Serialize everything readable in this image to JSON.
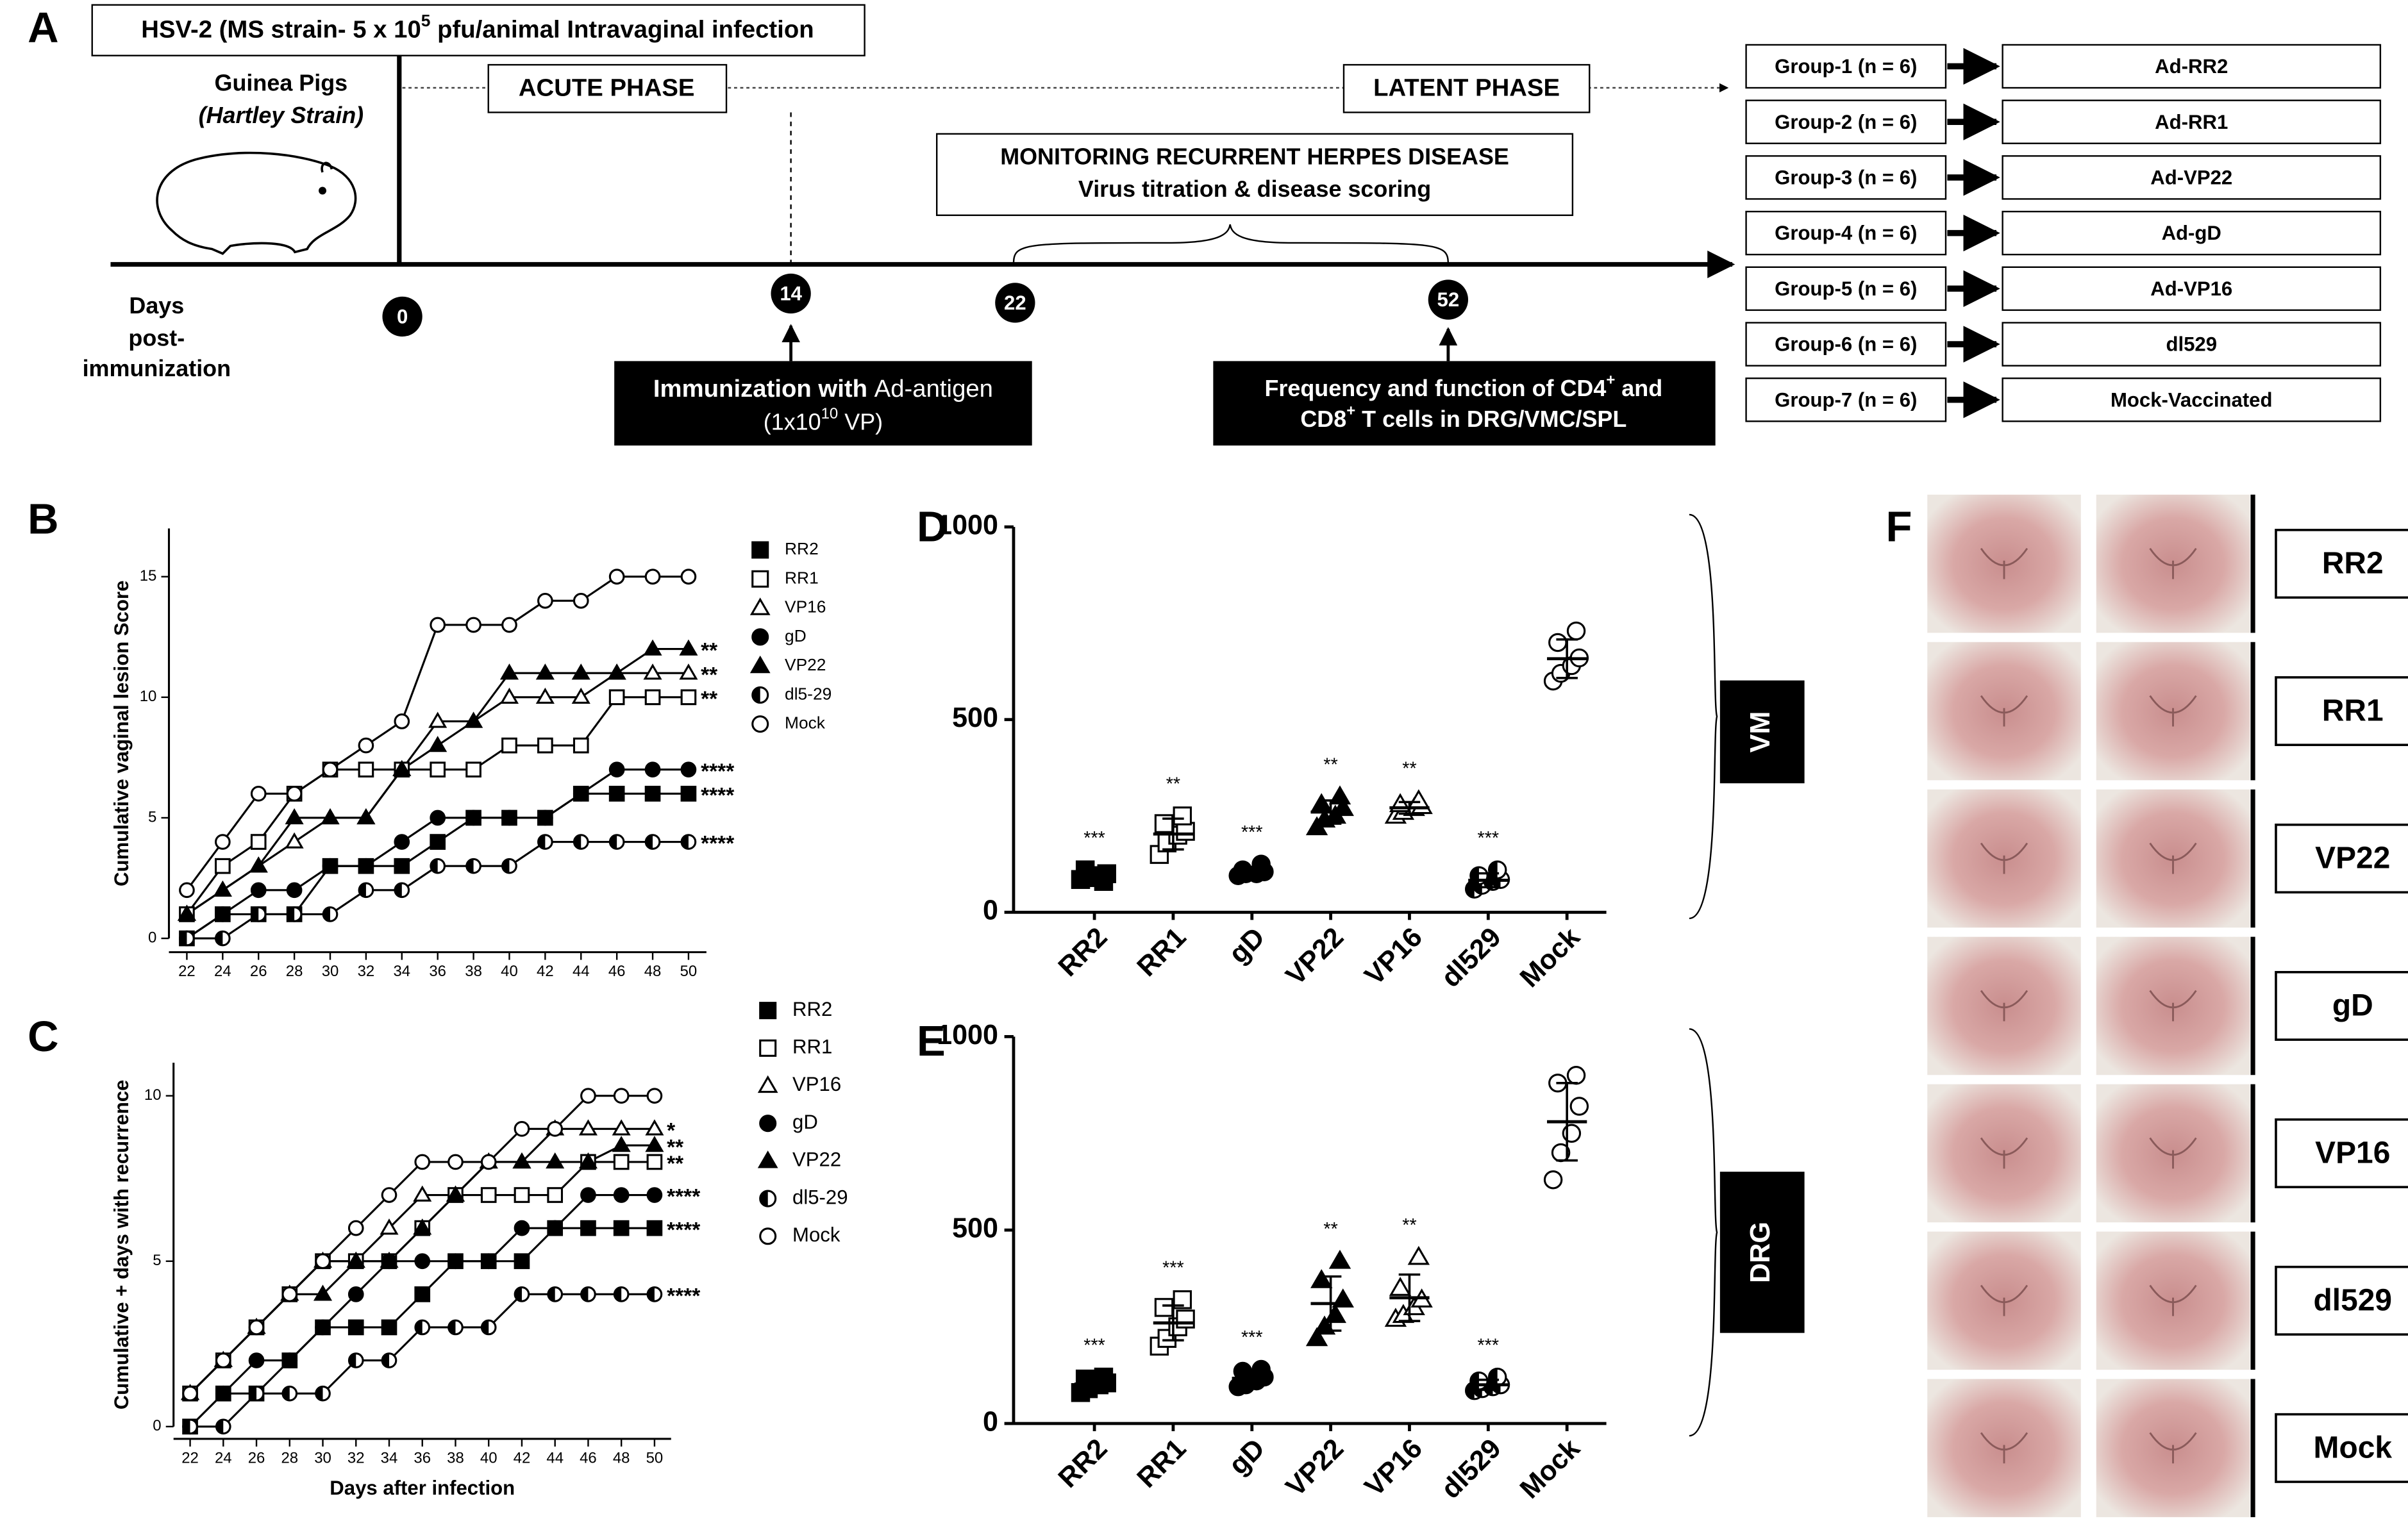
{
  "panel_a": {
    "label": "A",
    "infection": [
      "HSV-2 (MS strain- 5 x 10",
      "5",
      " pfu/animal Intravaginal infection"
    ],
    "animal": [
      "Guinea Pigs",
      "(Hartley Strain)"
    ],
    "acute": "ACUTE PHASE",
    "latent": "LATENT PHASE",
    "monitoring": [
      "MONITORING RECURRENT HERPES DISEASE",
      "Virus titration & disease scoring"
    ],
    "axis_label": [
      "Days",
      "post-",
      "immunization"
    ],
    "days": [
      0,
      14,
      22,
      52
    ],
    "immunization": [
      "Immunization with ",
      "Ad-antigen"
    ],
    "dose": [
      "(1x10",
      "10",
      " VP)"
    ],
    "frequency": [
      [
        "Frequency and function of CD4",
        "+",
        " and"
      ],
      [
        "CD8",
        "+",
        " T  cells in DRG/VMC/SPL"
      ]
    ],
    "groups": [
      {
        "group": "Group-1 (n = 6)",
        "vaccine": "Ad-RR2"
      },
      {
        "group": "Group-2 (n = 6)",
        "vaccine": "Ad-RR1"
      },
      {
        "group": "Group-3 (n = 6)",
        "vaccine": "Ad-VP22"
      },
      {
        "group": "Group-4 (n = 6)",
        "vaccine": "Ad-gD"
      },
      {
        "group": "Group-5 (n = 6)",
        "vaccine": "Ad-VP16"
      },
      {
        "group": "Group-6 (n = 6)",
        "vaccine": "dl529"
      },
      {
        "group": "Group-7 (n = 6)",
        "vaccine": "Mock-Vaccinated"
      }
    ]
  },
  "chart_data": [
    {
      "type": "line",
      "label": "B",
      "y_label": "Cumulative vaginal lesion Score",
      "x": [
        22,
        24,
        26,
        28,
        30,
        32,
        34,
        36,
        38,
        40,
        42,
        44,
        46,
        48,
        50
      ],
      "xlim": [
        21,
        51
      ],
      "xticks": [
        22,
        24,
        26,
        28,
        30,
        32,
        34,
        36,
        38,
        40,
        42,
        44,
        46,
        48,
        50
      ],
      "ylim": [
        0,
        17
      ],
      "yticks": [
        0,
        5,
        10,
        15
      ],
      "series": [
        {
          "name": "RR2",
          "color": "#000000",
          "marker": "square",
          "values": [
            0,
            1,
            1,
            1,
            3,
            3,
            3,
            4,
            5,
            5,
            5,
            6,
            6,
            6,
            6
          ],
          "annotation": "****"
        },
        {
          "name": "RR1",
          "color": "#000000",
          "marker": "square-open",
          "values": [
            1,
            3,
            4,
            6,
            7,
            7,
            7,
            7,
            7,
            8,
            8,
            8,
            10,
            10,
            10
          ],
          "annotation": "**"
        },
        {
          "name": "VP16",
          "color": "#000000",
          "marker": "triangle-open",
          "values": [
            1,
            2,
            3,
            4,
            5,
            5,
            7,
            9,
            9,
            10,
            10,
            10,
            11,
            11,
            11
          ],
          "annotation": "**"
        },
        {
          "name": "gD",
          "color": "#000000",
          "marker": "circle",
          "values": [
            0,
            1,
            2,
            2,
            3,
            3,
            4,
            5,
            5,
            5,
            5,
            6,
            7,
            7,
            7
          ],
          "annotation": "****"
        },
        {
          "name": "VP22",
          "color": "#000000",
          "marker": "triangle",
          "values": [
            1,
            2,
            3,
            5,
            5,
            5,
            7,
            8,
            9,
            11,
            11,
            11,
            11,
            12,
            12
          ],
          "annotation": "**"
        },
        {
          "name": "dl5-29",
          "color": "#000000",
          "marker": "half-circle",
          "values": [
            0,
            0,
            1,
            1,
            1,
            2,
            2,
            3,
            3,
            3,
            4,
            4,
            4,
            4,
            4
          ],
          "annotation": "****"
        },
        {
          "name": "Mock",
          "color": "#000000",
          "marker": "circle-open",
          "values": [
            2,
            4,
            6,
            6,
            7,
            8,
            9,
            13,
            13,
            13,
            14,
            14,
            15,
            15,
            15
          ]
        }
      ]
    },
    {
      "type": "line",
      "label": "C",
      "y_label": "Cumulative + days with recurrence",
      "x_label": "Days after infection",
      "x": [
        22,
        24,
        26,
        28,
        30,
        32,
        34,
        36,
        38,
        40,
        42,
        44,
        46,
        48,
        50
      ],
      "xlim": [
        21,
        51
      ],
      "xticks": [
        22,
        24,
        26,
        28,
        30,
        32,
        34,
        36,
        38,
        40,
        42,
        44,
        46,
        48,
        50
      ],
      "ylim": [
        0,
        11
      ],
      "yticks": [
        0,
        5,
        10
      ],
      "series": [
        {
          "name": "RR2",
          "color": "#000000",
          "marker": "square",
          "values": [
            0,
            1,
            1,
            2,
            3,
            3,
            3,
            4,
            5,
            5,
            5,
            6,
            6,
            6,
            6
          ],
          "annotation": "****"
        },
        {
          "name": "RR1",
          "color": "#000000",
          "marker": "square-open",
          "values": [
            1,
            2,
            3,
            4,
            5,
            5,
            5,
            6,
            7,
            7,
            7,
            7,
            8,
            8,
            8
          ],
          "annotation": "**"
        },
        {
          "name": "VP16",
          "color": "#000000",
          "marker": "triangle-open",
          "values": [
            1,
            2,
            3,
            4,
            5,
            5,
            6,
            7,
            7,
            8,
            8,
            9,
            9,
            9,
            9
          ],
          "annotation": "*"
        },
        {
          "name": "gD",
          "color": "#000000",
          "marker": "circle",
          "values": [
            0,
            1,
            2,
            2,
            3,
            4,
            5,
            5,
            5,
            5,
            6,
            6,
            7,
            7,
            7
          ],
          "annotation": "****"
        },
        {
          "name": "VP22",
          "color": "#000000",
          "marker": "triangle",
          "values": [
            1,
            2,
            3,
            4,
            4,
            5,
            5,
            6,
            7,
            8,
            8,
            8,
            8,
            8.5,
            8.5
          ],
          "annotation": "**"
        },
        {
          "name": "dl5-29",
          "color": "#000000",
          "marker": "half-circle",
          "values": [
            0,
            0,
            1,
            1,
            1,
            2,
            2,
            3,
            3,
            3,
            4,
            4,
            4,
            4,
            4
          ],
          "annotation": "****"
        },
        {
          "name": "Mock",
          "color": "#000000",
          "marker": "circle-open",
          "values": [
            1,
            2,
            3,
            4,
            5,
            6,
            7,
            8,
            8,
            8,
            9,
            9,
            10,
            10,
            10
          ]
        }
      ]
    },
    {
      "type": "dot",
      "label": "D",
      "side_label": "VM",
      "categories": [
        "RR2",
        "RR1",
        "gD",
        "VP22",
        "VP16",
        "dl529",
        "Mock"
      ],
      "markers": [
        "square",
        "square-open",
        "circle",
        "triangle",
        "triangle-open",
        "half-circle",
        "circle-open"
      ],
      "color": "#000000",
      "ylim": [
        0,
        1000
      ],
      "yticks": [
        0,
        500,
        1000
      ],
      "points": [
        [
          85,
          90,
          95,
          100,
          110,
          80
        ],
        [
          150,
          180,
          200,
          210,
          230,
          250
        ],
        [
          95,
          100,
          100,
          105,
          110,
          125
        ],
        [
          220,
          240,
          250,
          270,
          280,
          300
        ],
        [
          250,
          260,
          270,
          275,
          280,
          290
        ],
        [
          60,
          70,
          80,
          85,
          95,
          110
        ],
        [
          600,
          620,
          640,
          660,
          700,
          730
        ]
      ],
      "mean": [
        95,
        203,
        106,
        260,
        271,
        83,
        658
      ],
      "sd": [
        12,
        40,
        10,
        30,
        15,
        18,
        50
      ],
      "annotations": [
        "***",
        "**",
        "***",
        "**",
        "**",
        "***",
        null
      ]
    },
    {
      "type": "dot",
      "label": "E",
      "side_label": "DRG",
      "categories": [
        "RR2",
        "RR1",
        "gD",
        "VP22",
        "VP16",
        "dl529",
        "Mock"
      ],
      "markers": [
        "square",
        "square-open",
        "circle",
        "triangle",
        "triangle-open",
        "half-circle",
        "circle-open"
      ],
      "color": "#000000",
      "ylim": [
        0,
        1000
      ],
      "yticks": [
        0,
        500,
        1000
      ],
      "points": [
        [
          80,
          90,
          100,
          105,
          115,
          120
        ],
        [
          200,
          220,
          250,
          270,
          300,
          320
        ],
        [
          95,
          100,
          110,
          120,
          135,
          140
        ],
        [
          220,
          250,
          280,
          320,
          370,
          420
        ],
        [
          270,
          280,
          300,
          320,
          350,
          430
        ],
        [
          85,
          90,
          95,
          100,
          110,
          120
        ],
        [
          630,
          700,
          750,
          820,
          880,
          900
        ]
      ],
      "mean": [
        102,
        260,
        117,
        310,
        325,
        100,
        780
      ],
      "sd": [
        15,
        45,
        18,
        70,
        60,
        13,
        100
      ],
      "annotations": [
        "***",
        "***",
        "***",
        "**",
        "**",
        "***",
        null
      ]
    }
  ],
  "panel_f": {
    "label": "F",
    "groups": [
      "RR2",
      "RR1",
      "VP22",
      "gD",
      "VP16",
      "dl529",
      "Mock"
    ]
  }
}
